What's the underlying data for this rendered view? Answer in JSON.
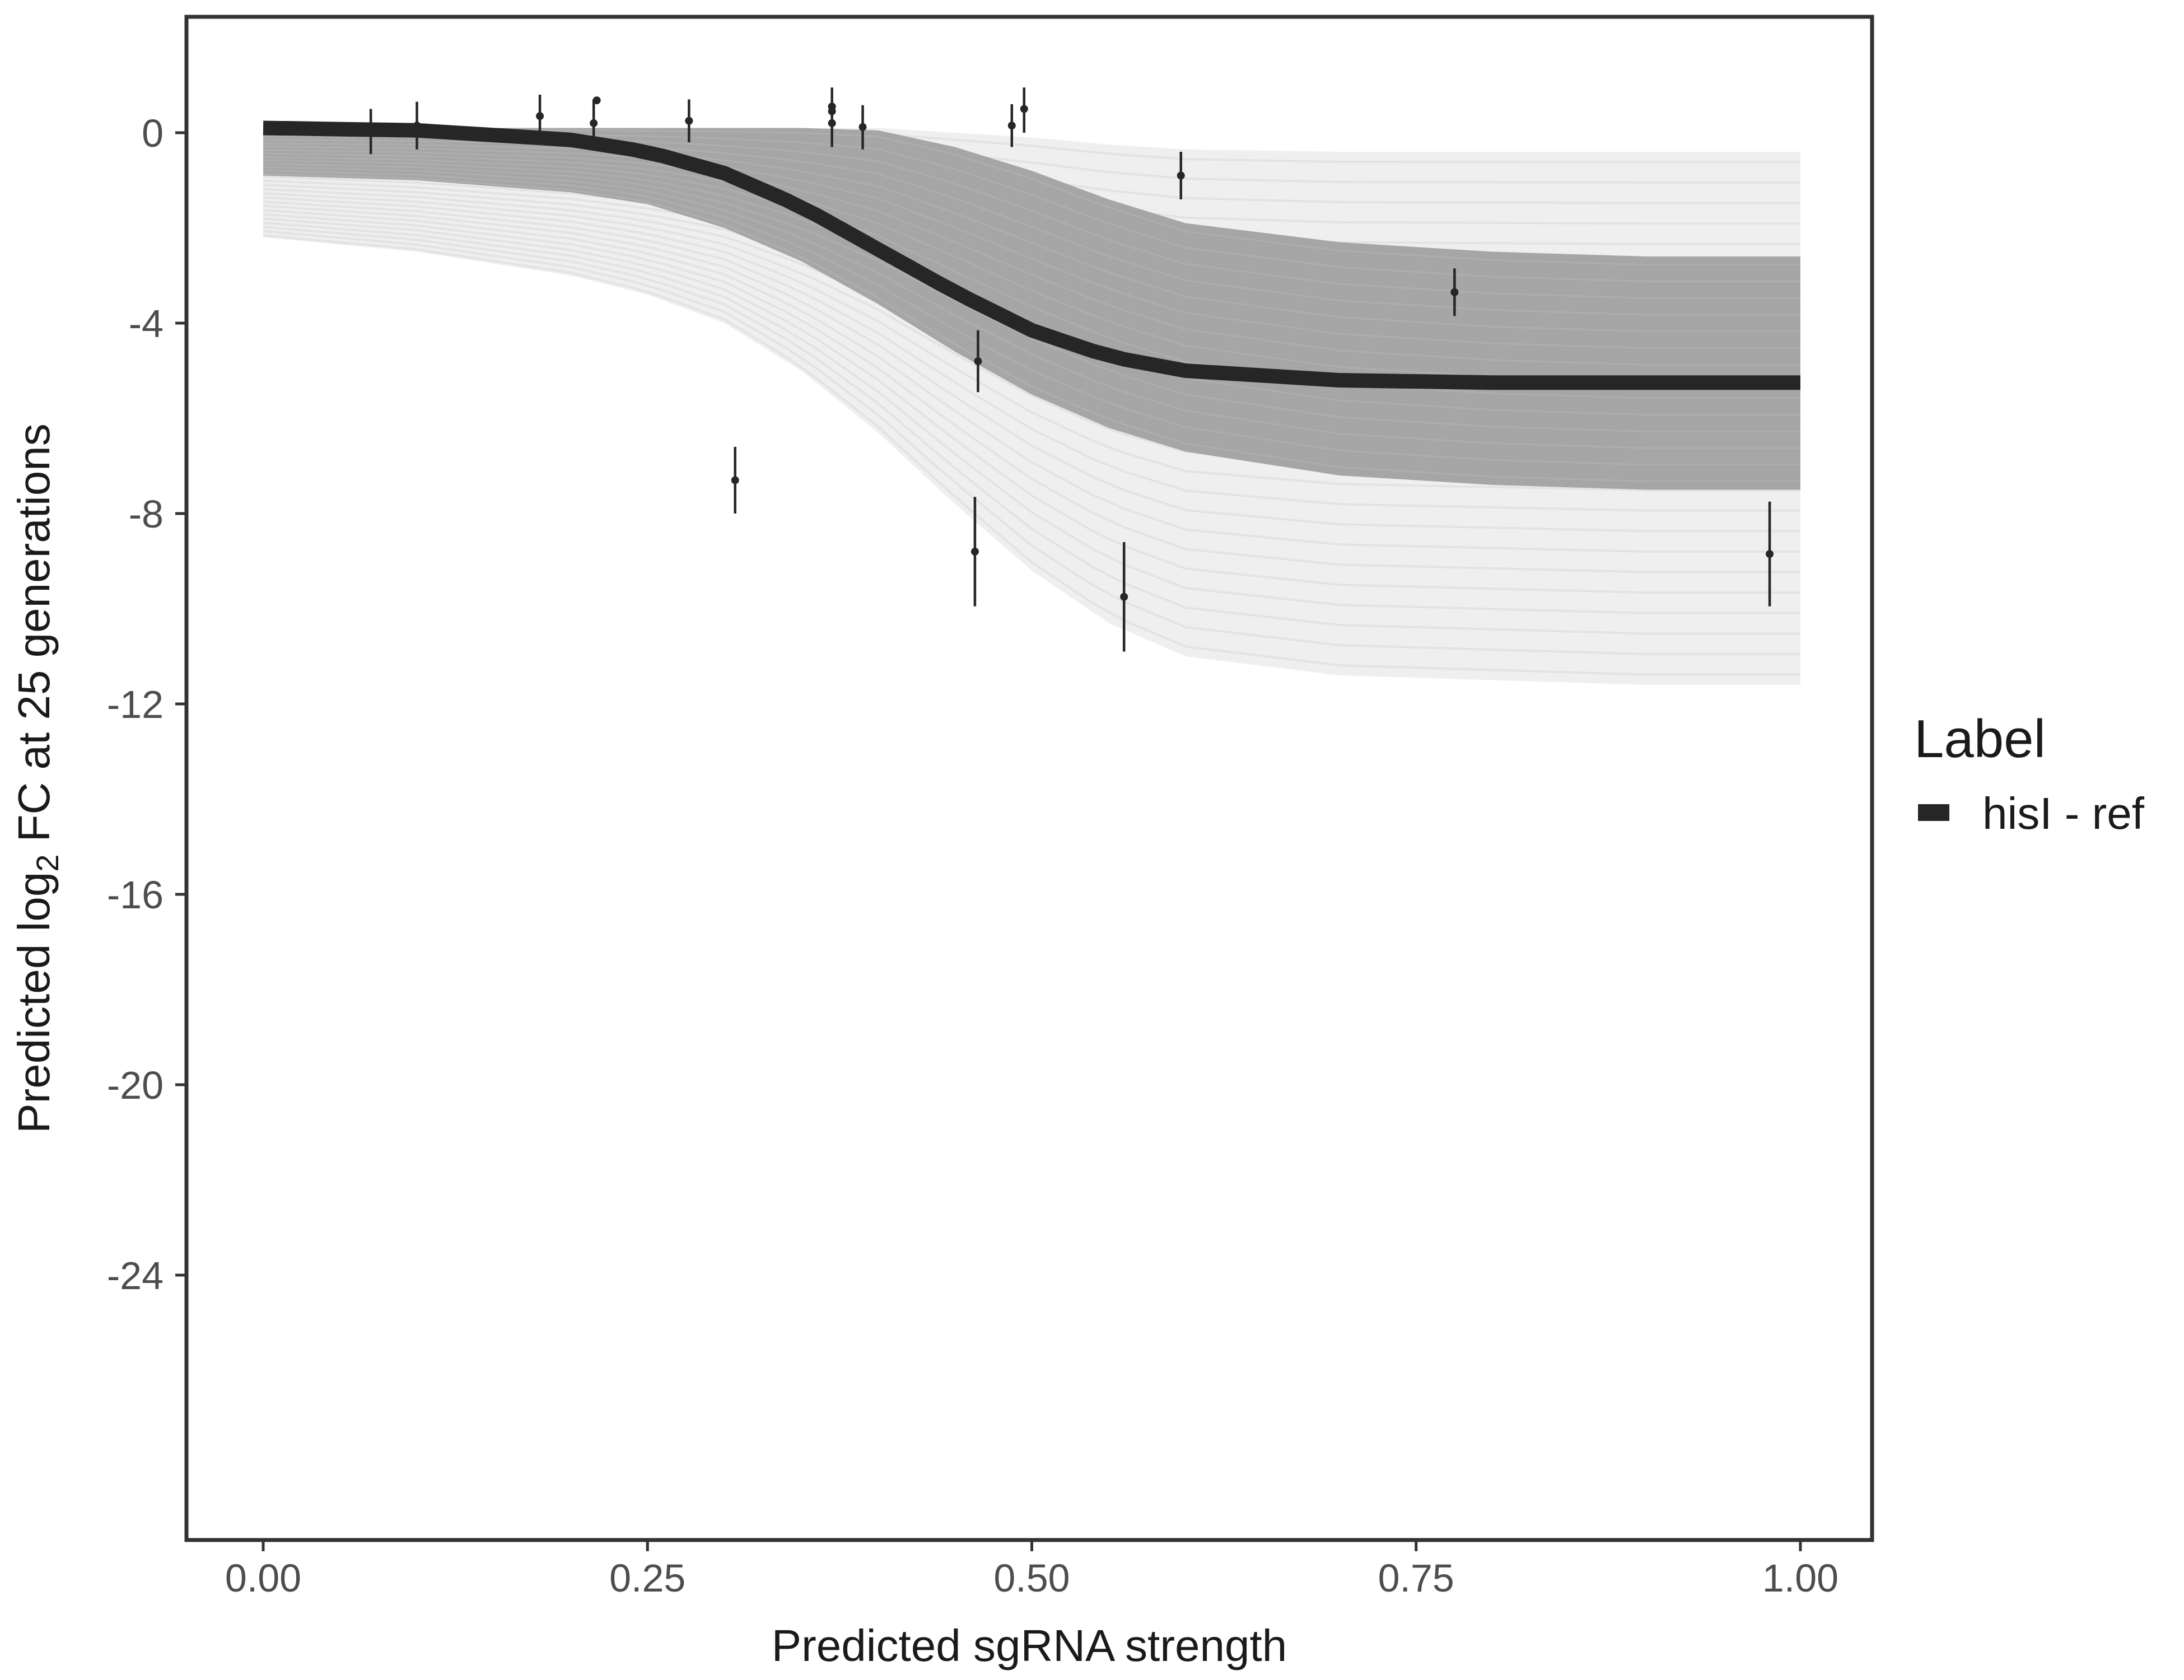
{
  "chart_data": {
    "type": "line",
    "title": "",
    "xlabel": "Predicted sgRNA strength",
    "ylabel": {
      "pre": "Predicted  log",
      "sub": "2",
      "post": " FC at 25 generations"
    },
    "xlim": [
      -0.1,
      2.1
    ],
    "ylim": [
      -29.5,
      2.5
    ],
    "x_ticks": [
      0.0,
      0.25,
      0.5,
      0.75,
      1.0
    ],
    "x_tick_labels": [
      "0.00",
      "0.25",
      "0.50",
      "0.75",
      "1.00"
    ],
    "y_ticks": [
      0,
      -4,
      -8,
      -12,
      -16,
      -20,
      -24
    ],
    "y_tick_labels": [
      "0",
      "-4",
      "-8",
      "-12",
      "-16",
      "-20",
      "-24"
    ],
    "grid": false,
    "legend": {
      "title": "Label",
      "position": "right",
      "entries": [
        {
          "label": "hisI - ref",
          "color": "#262626"
        }
      ]
    },
    "fit_curve": {
      "name": "hisI - ref",
      "color": "#262626",
      "x": [
        0.0,
        0.1,
        0.2,
        0.25,
        0.3,
        0.35,
        0.4,
        0.45,
        0.5,
        0.55,
        0.6,
        0.7,
        0.8,
        0.9,
        1.0
      ],
      "y": [
        0.1,
        0.05,
        -0.15,
        -0.4,
        -0.85,
        -1.55,
        -2.45,
        -3.35,
        -4.15,
        -4.7,
        -5.0,
        -5.2,
        -5.25,
        -5.25,
        -5.25
      ]
    },
    "posterior_band": {
      "color": "#a6a6a6",
      "x": [
        0.0,
        0.1,
        0.2,
        0.25,
        0.3,
        0.35,
        0.4,
        0.45,
        0.5,
        0.55,
        0.6,
        0.7,
        0.8,
        0.9,
        1.0
      ],
      "upper": [
        0.1,
        0.1,
        0.1,
        0.1,
        0.1,
        0.1,
        0.05,
        -0.3,
        -0.8,
        -1.4,
        -1.9,
        -2.3,
        -2.5,
        -2.6,
        -2.6
      ],
      "lower": [
        -0.9,
        -1.0,
        -1.25,
        -1.5,
        -2.0,
        -2.7,
        -3.6,
        -4.6,
        -5.5,
        -6.2,
        -6.7,
        -7.2,
        -7.4,
        -7.5,
        -7.5
      ]
    },
    "posterior_outer": {
      "color": "#efefef",
      "x": [
        0.0,
        0.1,
        0.2,
        0.25,
        0.3,
        0.35,
        0.4,
        0.45,
        0.5,
        0.55,
        0.6,
        0.7,
        0.8,
        0.9,
        1.0
      ],
      "upper": [
        0.1,
        0.1,
        0.1,
        0.1,
        0.1,
        0.1,
        0.1,
        0.0,
        -0.1,
        -0.25,
        -0.35,
        -0.4,
        -0.4,
        -0.4,
        -0.4
      ],
      "lower": [
        -2.2,
        -2.5,
        -3.0,
        -3.4,
        -4.0,
        -5.0,
        -6.3,
        -7.8,
        -9.2,
        -10.3,
        -11.0,
        -11.4,
        -11.5,
        -11.6,
        -11.6
      ]
    },
    "points": [
      {
        "x": 0.07,
        "y": 0.05,
        "ymin": -0.45,
        "ymax": 0.5
      },
      {
        "x": 0.1,
        "y": 0.15,
        "ymin": -0.35,
        "ymax": 0.65
      },
      {
        "x": 0.18,
        "y": 0.35,
        "ymin": -0.05,
        "ymax": 0.8
      },
      {
        "x": 0.215,
        "y": 0.2,
        "ymin": -0.2,
        "ymax": 0.7
      },
      {
        "x": 0.217,
        "y": 0.68,
        "ymin": 0.68,
        "ymax": 0.68
      },
      {
        "x": 0.277,
        "y": 0.25,
        "ymin": -0.2,
        "ymax": 0.7
      },
      {
        "x": 0.307,
        "y": -7.3,
        "ymin": -8.0,
        "ymax": -6.6
      },
      {
        "x": 0.37,
        "y": 0.2,
        "ymin": -0.3,
        "ymax": 0.95
      },
      {
        "x": 0.37,
        "y": 0.45,
        "ymin": 0.45,
        "ymax": 0.45
      },
      {
        "x": 0.37,
        "y": 0.55,
        "ymin": 0.55,
        "ymax": 0.55
      },
      {
        "x": 0.39,
        "y": 0.12,
        "ymin": -0.35,
        "ymax": 0.58
      },
      {
        "x": 0.463,
        "y": -8.8,
        "ymin": -9.95,
        "ymax": -7.65
      },
      {
        "x": 0.465,
        "y": -4.8,
        "ymin": -5.45,
        "ymax": -4.15
      },
      {
        "x": 0.487,
        "y": 0.15,
        "ymin": -0.3,
        "ymax": 0.6
      },
      {
        "x": 0.495,
        "y": 0.5,
        "ymin": 0.0,
        "ymax": 0.95
      },
      {
        "x": 0.56,
        "y": -9.75,
        "ymin": -10.9,
        "ymax": -8.6
      },
      {
        "x": 0.597,
        "y": -0.9,
        "ymin": -1.4,
        "ymax": -0.4
      },
      {
        "x": 0.775,
        "y": -3.35,
        "ymin": -3.85,
        "ymax": -2.85
      },
      {
        "x": 0.98,
        "y": -8.85,
        "ymin": -9.95,
        "ymax": -7.75
      }
    ]
  }
}
